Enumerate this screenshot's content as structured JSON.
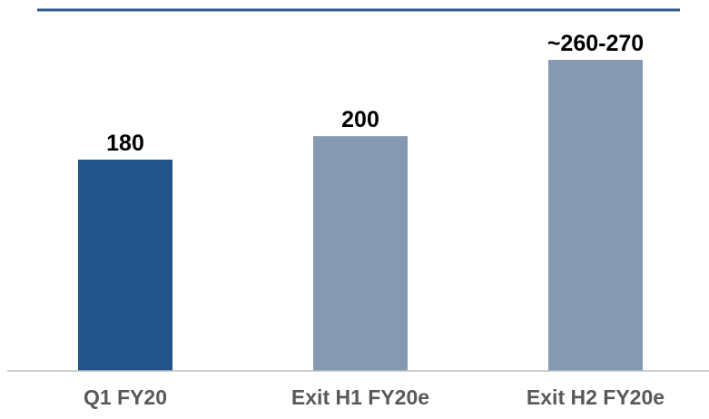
{
  "chart_data": {
    "type": "bar",
    "title": "",
    "xlabel": "",
    "ylabel": "",
    "categories": [
      "Q1 FY20",
      "Exit H1 FY20e",
      "Exit H2 FY20e"
    ],
    "values": [
      180,
      200,
      265
    ],
    "data_labels": [
      "180",
      "200",
      "~260-270"
    ],
    "ylim": [
      0,
      316
    ],
    "grid": false,
    "legend": "none",
    "colors": {
      "highlight": "#21558A",
      "bar": "#8599B3",
      "top_rule": "#2B5A8C",
      "baseline": "#BFBFBF"
    },
    "highlight_index": 0
  }
}
